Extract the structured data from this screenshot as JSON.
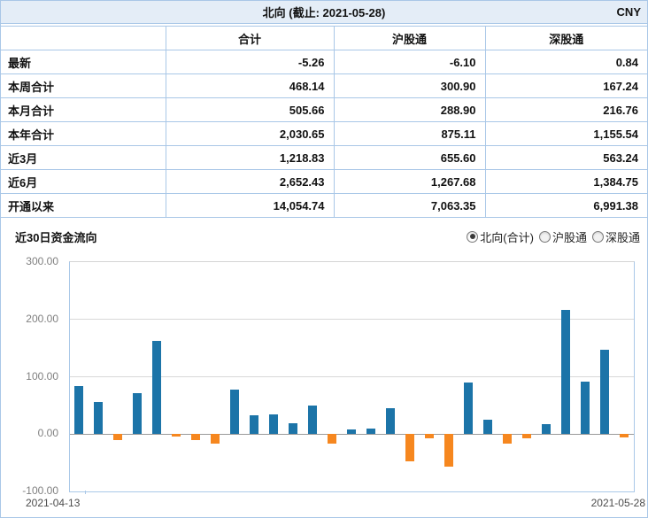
{
  "header": {
    "title": "北向 (截止: 2021-05-28)",
    "currency": "CNY"
  },
  "table": {
    "columns": [
      "",
      "合计",
      "沪股通",
      "深股通"
    ],
    "rows": [
      {
        "label": "最新",
        "values": [
          "-5.26",
          "-6.10",
          "0.84"
        ]
      },
      {
        "label": "本周合计",
        "values": [
          "468.14",
          "300.90",
          "167.24"
        ]
      },
      {
        "label": "本月合计",
        "values": [
          "505.66",
          "288.90",
          "216.76"
        ]
      },
      {
        "label": "本年合计",
        "values": [
          "2,030.65",
          "875.11",
          "1,155.54"
        ]
      },
      {
        "label": "近3月",
        "values": [
          "1,218.83",
          "655.60",
          "563.24"
        ]
      },
      {
        "label": "近6月",
        "values": [
          "2,652.43",
          "1,267.68",
          "1,384.75"
        ]
      },
      {
        "label": "开通以来",
        "values": [
          "14,054.74",
          "7,063.35",
          "6,991.38"
        ]
      }
    ]
  },
  "chart_section": {
    "title": "近30日资金流向",
    "radios": [
      {
        "label": "北向(合计)",
        "selected": true
      },
      {
        "label": "沪股通",
        "selected": false
      },
      {
        "label": "深股通",
        "selected": false
      }
    ]
  },
  "chart_data": {
    "type": "bar",
    "title": "近30日资金流向",
    "x_start_label": "2021-04-13",
    "x_end_label": "2021-05-28",
    "ylim": [
      -100,
      300
    ],
    "yticks": [
      "300.00",
      "200.00",
      "100.00",
      "0.00",
      "-100.00"
    ],
    "grid": true,
    "legend_position": "none",
    "values": [
      84,
      56,
      -10,
      72,
      163,
      -5,
      -11,
      -16,
      78,
      33,
      34,
      19,
      50,
      -17,
      8,
      9,
      45,
      -48,
      -7,
      -56,
      90,
      25,
      -16,
      -7,
      18,
      217,
      92,
      147,
      -5.26
    ],
    "positive_color": "#1c74a8",
    "negative_color": "#f6871f"
  }
}
